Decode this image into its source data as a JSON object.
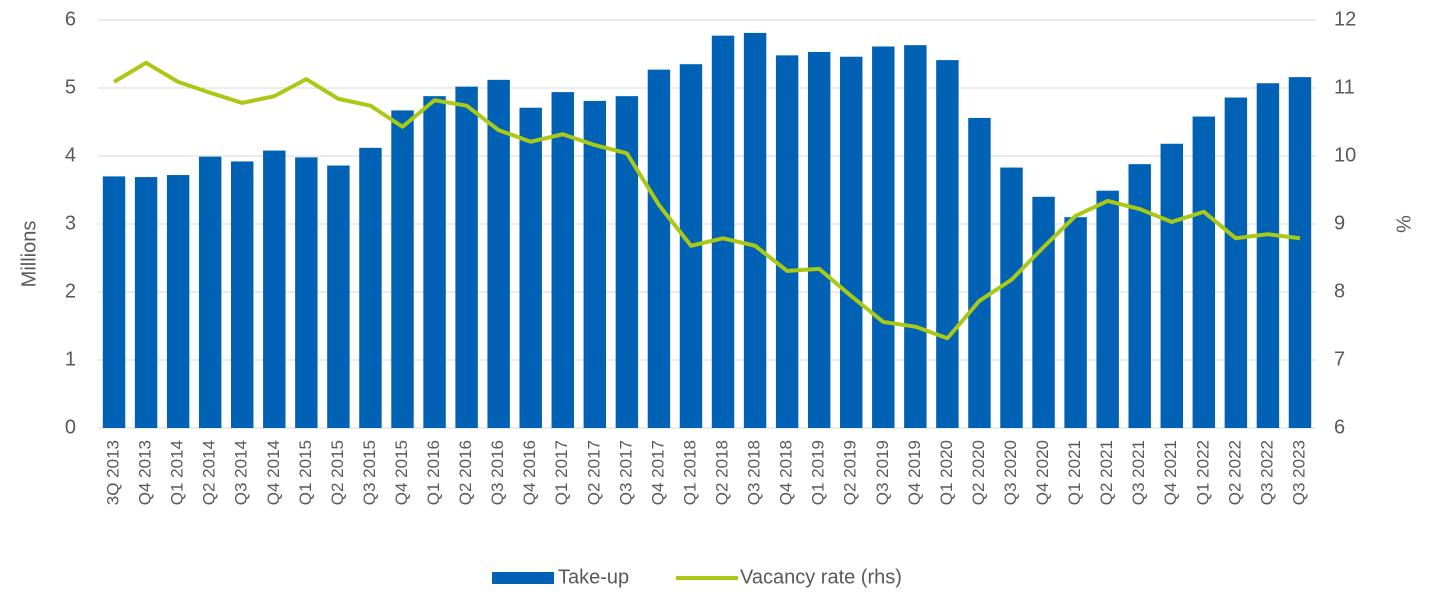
{
  "chart_data": {
    "type": "bar-line",
    "categories": [
      "3Q 2013",
      "Q4 2013",
      "Q1 2014",
      "Q2 2014",
      "Q3 2014",
      "Q4 2014",
      "Q1 2015",
      "Q2 2015",
      "Q3 2015",
      "Q4 2015",
      "Q1 2016",
      "Q2 2016",
      "Q3 2016",
      "Q4 2016",
      "Q1 2017",
      "Q2 2017",
      "Q3 2017",
      "Q4 2017",
      "Q1 2018",
      "Q2 2018",
      "Q3 2018",
      "Q4 2018",
      "Q1 2019",
      "Q2 2019",
      "Q3 2019",
      "Q4 2019",
      "Q1 2020",
      "Q2 2020",
      "Q3 2020",
      "Q4 2020",
      "Q1 2021",
      "Q2 2021",
      "Q3 2021",
      "Q4 2021",
      "Q1 2022",
      "Q2 2022",
      "Q3 2022",
      "Q3 2023"
    ],
    "series": [
      {
        "name": "Take-up",
        "type": "bar",
        "color": "#0061b5",
        "values": [
          3.7,
          3.69,
          3.72,
          3.99,
          3.92,
          4.08,
          3.98,
          3.86,
          4.12,
          4.67,
          4.88,
          5.02,
          5.12,
          4.71,
          4.94,
          4.81,
          4.88,
          5.27,
          5.35,
          5.77,
          5.81,
          5.48,
          5.53,
          5.46,
          5.61,
          5.63,
          5.41,
          4.56,
          3.83,
          3.4,
          3.1,
          3.49,
          3.88,
          4.18,
          4.58,
          4.86,
          5.07,
          5.16
        ]
      },
      {
        "name": "Vacancy rate (rhs)",
        "type": "line",
        "axis": "y2",
        "color": "#a9c914",
        "values": [
          11.09,
          11.37,
          11.09,
          10.93,
          10.78,
          10.88,
          11.13,
          10.84,
          10.74,
          10.43,
          10.82,
          10.74,
          10.38,
          10.21,
          10.32,
          10.16,
          10.04,
          9.28,
          8.68,
          8.79,
          8.68,
          8.31,
          8.34,
          7.94,
          7.56,
          7.49,
          7.32,
          7.87,
          8.18,
          8.66,
          9.12,
          9.34,
          9.22,
          9.03,
          9.18,
          8.79,
          8.85,
          8.79
        ]
      }
    ],
    "y_label": "Millions",
    "y2_label": "%",
    "ylim": [
      0,
      6
    ],
    "yticks": [
      0,
      1,
      2,
      3,
      4,
      5,
      6
    ],
    "y2lim": [
      6,
      12
    ],
    "y2ticks": [
      6,
      7,
      8,
      9,
      10,
      11,
      12
    ],
    "grid": true,
    "legend": "bottom"
  }
}
